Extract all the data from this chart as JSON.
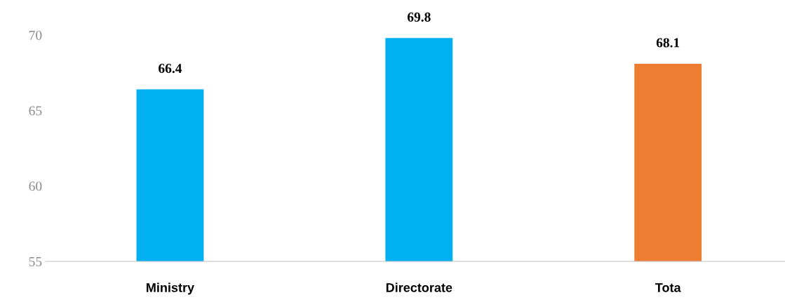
{
  "chart_data": {
    "type": "bar",
    "categories": [
      "Ministry",
      "Directorate",
      "Tota"
    ],
    "values": [
      66.4,
      69.8,
      68.1
    ],
    "colors": [
      "#00b0f0",
      "#00b0f0",
      "#ed7d31"
    ],
    "ylim": [
      55,
      70
    ],
    "yticks": [
      55,
      60,
      65,
      70
    ],
    "grid": false,
    "data_labels": true
  }
}
